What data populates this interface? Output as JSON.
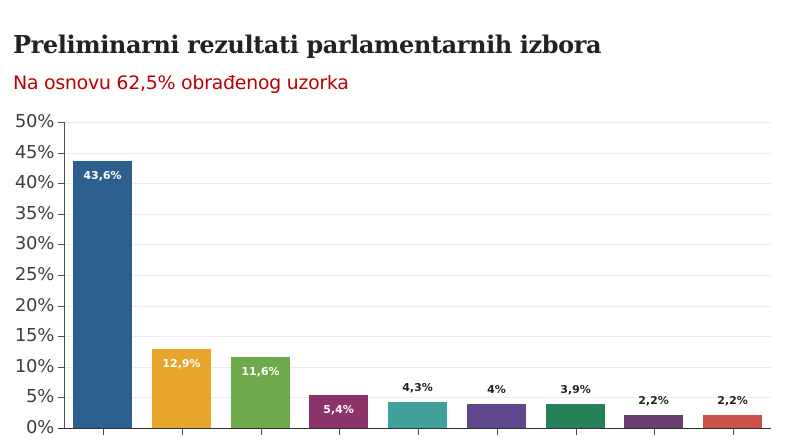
{
  "header": {
    "title": "Preliminarni rezultati parlamentarnih izbora",
    "subtitle": "Na osnovu 62,5% obrađenog uzorka"
  },
  "colors": {
    "title": "#222222",
    "subtitle": "#b80000",
    "gridline": "#ececec",
    "axis": "#505050"
  },
  "chart_data": {
    "type": "bar",
    "title": "Preliminarni rezultati parlamentarnih izbora",
    "subtitle": "Na osnovu 62,5% obrađenog uzorka",
    "xlabel": "",
    "ylabel": "",
    "ylim": [
      0,
      50
    ],
    "y_ticks": [
      "0%",
      "5%",
      "10%",
      "15%",
      "20%",
      "25%",
      "30%",
      "35%",
      "40%",
      "45%",
      "50%"
    ],
    "grid": true,
    "legend": "none",
    "categories": [
      "",
      "",
      "",
      "",
      "",
      "",
      "",
      "",
      ""
    ],
    "categories_note": "x-axis category labels are cropped below the visible area",
    "values": [
      43.6,
      12.9,
      11.6,
      5.4,
      4.3,
      4.0,
      3.9,
      2.2,
      2.2
    ],
    "value_labels": [
      "43,6%",
      "12,9%",
      "11,6%",
      "5,4%",
      "4,3%",
      "4%",
      "3,9%",
      "2,2%",
      "2,2%"
    ],
    "bar_colors": [
      "#2d5f8e",
      "#e8a52b",
      "#6ea94b",
      "#8c336a",
      "#42a09b",
      "#5d468c",
      "#268158",
      "#6b3f6f",
      "#c9524a"
    ],
    "label_inside": [
      true,
      true,
      true,
      true,
      false,
      false,
      false,
      false,
      false
    ]
  }
}
